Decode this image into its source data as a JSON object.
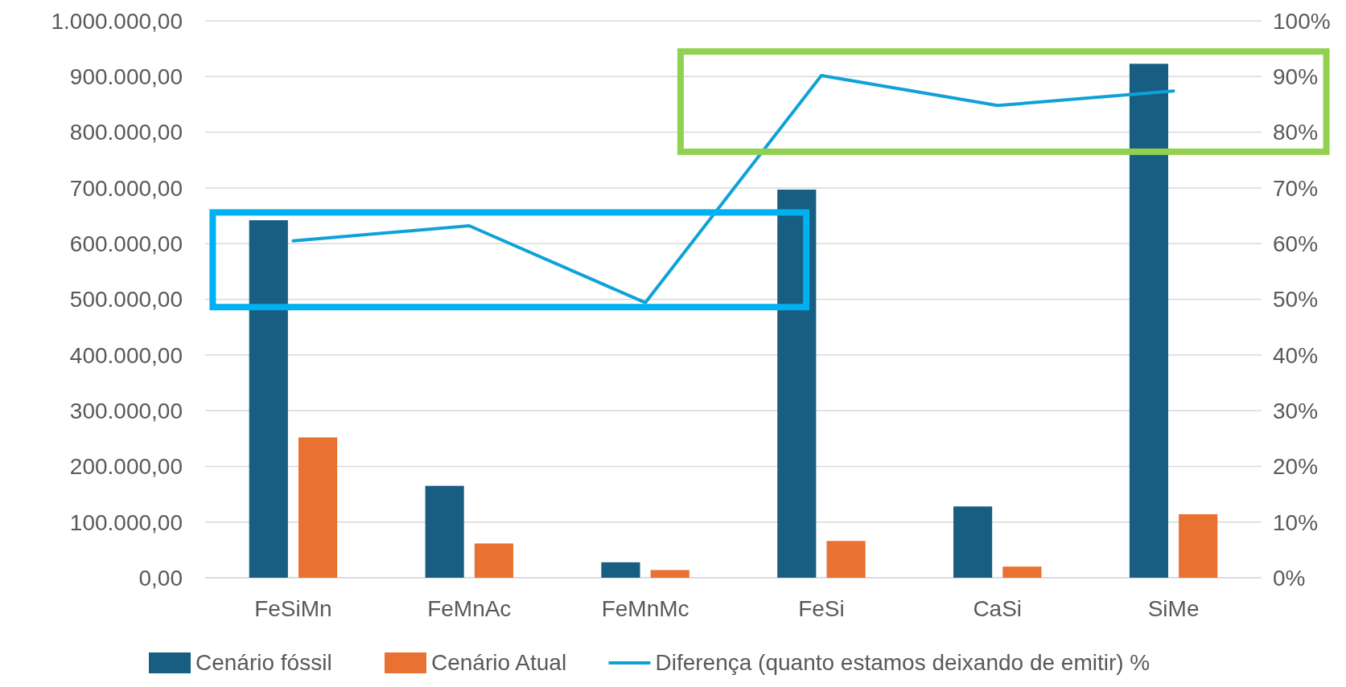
{
  "chart_data": {
    "type": "bar",
    "categories": [
      "FeSiMn",
      "FeMnAc",
      "FeMnMc",
      "FeSi",
      "CaSi",
      "SiMe"
    ],
    "series": [
      {
        "name": "Cenário fóssil",
        "color": "#175e82",
        "values": [
          642000,
          165000,
          27700,
          697000,
          128000,
          923000
        ]
      },
      {
        "name": "Cenário Atual",
        "color": "#e97132",
        "values": [
          252000,
          61500,
          13800,
          66000,
          20000,
          114000
        ]
      },
      {
        "name": "Diferença (quanto estamos deixando de emitir) %",
        "type": "line",
        "axis": "y2",
        "color": "#0ea2d9",
        "values": [
          60.5,
          63.2,
          49.4,
          90.2,
          84.8,
          87.4
        ]
      }
    ],
    "ylim": [
      0,
      1000000
    ],
    "yticks": [
      {
        "value": 0,
        "label": "0,00"
      },
      {
        "value": 100000,
        "label": "100.000,00"
      },
      {
        "value": 200000,
        "label": "200.000,00"
      },
      {
        "value": 300000,
        "label": "300.000,00"
      },
      {
        "value": 400000,
        "label": "400.000,00"
      },
      {
        "value": 500000,
        "label": "500.000,00"
      },
      {
        "value": 600000,
        "label": "600.000,00"
      },
      {
        "value": 700000,
        "label": "700.000,00"
      },
      {
        "value": 800000,
        "label": "800.000,00"
      },
      {
        "value": 900000,
        "label": "900.000,00"
      },
      {
        "value": 1000000,
        "label": "1.000.000,00"
      }
    ],
    "y2lim": [
      0,
      100
    ],
    "y2ticks": [
      {
        "value": 0,
        "label": "0%"
      },
      {
        "value": 10,
        "label": "10%"
      },
      {
        "value": 20,
        "label": "20%"
      },
      {
        "value": 30,
        "label": "30%"
      },
      {
        "value": 40,
        "label": "40%"
      },
      {
        "value": 50,
        "label": "50%"
      },
      {
        "value": 60,
        "label": "60%"
      },
      {
        "value": 70,
        "label": "70%"
      },
      {
        "value": 80,
        "label": "80%"
      },
      {
        "value": 90,
        "label": "90%"
      },
      {
        "value": 100,
        "label": "100%"
      }
    ],
    "grid": "y",
    "legend": "bottom",
    "marker": "none",
    "line_style": "solid"
  }
}
